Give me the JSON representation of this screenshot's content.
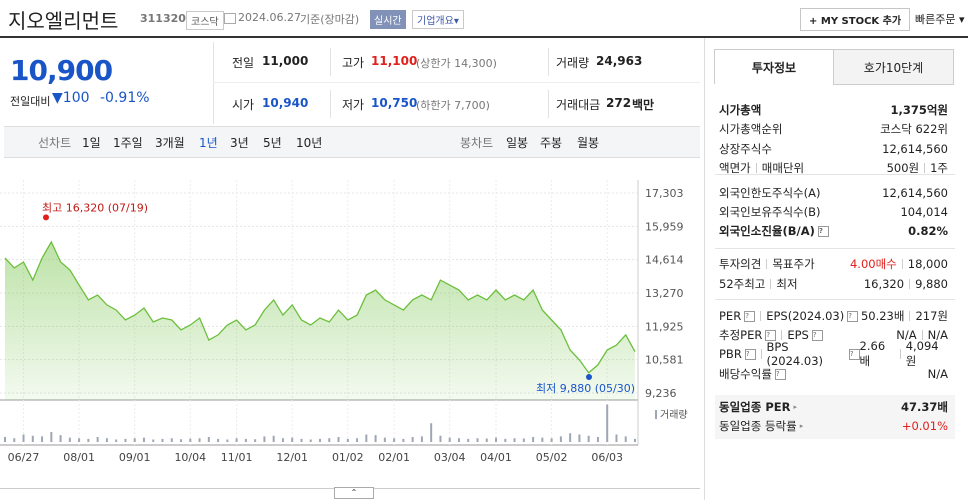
{
  "header": {
    "name": "지오엘리먼트",
    "code": "311320",
    "market": "코스닥",
    "date": "2024.06.27",
    "basis": "기준(장마감)",
    "realtime": "실시간",
    "company_info": "기업개요",
    "mystock": "MY STOCK 추가",
    "quick_order": "빠른주문"
  },
  "price": {
    "current": "10,900",
    "change_label": "전일대비",
    "change": "100",
    "rate": "-0.91%"
  },
  "quote": [
    {
      "label": "전일",
      "value": "11,000"
    },
    {
      "label": "고가",
      "value": "11,100",
      "note": "(상한가 14,300)"
    },
    {
      "label": "거래량",
      "value": "24,963"
    },
    {
      "label": "시가",
      "value": "10,940"
    },
    {
      "label": "저가",
      "value": "10,750",
      "note": "(하한가 7,700)"
    },
    {
      "label": "거래대금",
      "value": "272",
      "unit": "백만"
    }
  ],
  "tabs_line": {
    "label": "선차트",
    "items": [
      "1일",
      "1주일",
      "3개월",
      "1년",
      "3년",
      "5년",
      "10년"
    ]
  },
  "tabs_candle": {
    "label": "봉차트",
    "items": [
      "일봉",
      "주봉",
      "월봉"
    ]
  },
  "chart_data": {
    "type": "line",
    "color": "#6cbf3d",
    "categories": [
      null,
      null,
      "06/27",
      null,
      null,
      null,
      null,
      null,
      "08/01",
      null,
      null,
      null,
      null,
      null,
      "09/01",
      null,
      null,
      null,
      null,
      null,
      "10/04",
      null,
      null,
      null,
      null,
      "11/01",
      null,
      null,
      null,
      null,
      null,
      "12/01",
      null,
      null,
      null,
      null,
      null,
      "01/02",
      null,
      null,
      null,
      null,
      "02/01",
      null,
      null,
      null,
      null,
      null,
      "03/04",
      null,
      null,
      null,
      null,
      "04/01",
      null,
      null,
      null,
      null,
      null,
      "05/02",
      null,
      null,
      null,
      null,
      null,
      "06/03",
      null,
      null,
      null
    ],
    "values": [
      14680,
      14280,
      14520,
      13790,
      14680,
      15330,
      14520,
      14200,
      13590,
      12990,
      13190,
      12790,
      12580,
      12180,
      12380,
      12660,
      12100,
      12260,
      12180,
      11780,
      11980,
      12260,
      11370,
      11580,
      11980,
      12180,
      11780,
      11980,
      12580,
      12990,
      12380,
      12790,
      12180,
      11980,
      12260,
      12100,
      12580,
      12180,
      12380,
      13190,
      13390,
      12990,
      12790,
      12580,
      12990,
      13190,
      12990,
      13790,
      13590,
      13390,
      12990,
      13190,
      12990,
      13390,
      12990,
      13190,
      12990,
      13390,
      12580,
      12180,
      11780,
      10970,
      10570,
      10050,
      10370,
      10970,
      11170,
      11580,
      10900
    ],
    "ylim": [
      9236,
      17303
    ],
    "yticks": [
      {
        "value": 17303,
        "label": "17,303"
      },
      {
        "value": 15959,
        "label": "15,959"
      },
      {
        "value": 14614,
        "label": "14,614"
      },
      {
        "value": 13270,
        "label": "13,270"
      },
      {
        "value": 11925,
        "label": "11,925"
      },
      {
        "value": 10581,
        "label": "10,581"
      },
      {
        "value": 9236,
        "label": "9,236"
      }
    ],
    "grid": true,
    "annotations": [
      {
        "text": "최고 16,320 (07/19)",
        "value": 16320
      },
      {
        "text": "최저 9,880 (05/30)",
        "value": 9880
      }
    ],
    "volume": {
      "name": "거래량",
      "axis": "y2",
      "color": "#9ea6b4",
      "values": [
        40000,
        30000,
        60000,
        50000,
        45000,
        80000,
        55000,
        35000,
        30000,
        25000,
        40000,
        30000,
        20000,
        25000,
        30000,
        35000,
        20000,
        25000,
        30000,
        22000,
        28000,
        30000,
        40000,
        25000,
        20000,
        30000,
        25000,
        22000,
        45000,
        50000,
        30000,
        35000,
        25000,
        20000,
        25000,
        30000,
        40000,
        25000,
        30000,
        60000,
        55000,
        35000,
        30000,
        25000,
        40000,
        45000,
        150000,
        50000,
        35000,
        30000,
        25000,
        30000,
        28000,
        35000,
        25000,
        30000,
        28000,
        40000,
        35000,
        30000,
        45000,
        70000,
        60000,
        50000,
        40000,
        300000,
        60000,
        45000,
        24963
      ]
    },
    "y2lim": [
      0,
      320000
    ]
  },
  "side": {
    "tabs": [
      "투자정보",
      "호가10단계"
    ],
    "rows": [
      {
        "labels": [
          "시가총액"
        ],
        "values": [
          "1,375억원"
        ]
      },
      {
        "labels": [
          "시가총액순위"
        ],
        "values": [
          "코스닥 622위"
        ]
      },
      {
        "labels": [
          "상장주식수"
        ],
        "values": [
          "12,614,560"
        ]
      },
      {
        "labels": [
          "액면가",
          "매매단위"
        ],
        "values": [
          "500원",
          "1주"
        ]
      },
      {
        "labels": [
          "외국인한도주식수(A)"
        ],
        "values": [
          "12,614,560"
        ]
      },
      {
        "labels": [
          "외국인보유주식수(B)"
        ],
        "values": [
          "104,014"
        ]
      },
      {
        "labels": [
          "외국인소진율(B/A)"
        ],
        "values": [
          "0.82%"
        ]
      },
      {
        "labels": [
          "투자의견",
          "목표주가"
        ],
        "values": [
          "4.00매수",
          "18,000"
        ]
      },
      {
        "labels": [
          "52주최고",
          "최저"
        ],
        "values": [
          "16,320",
          "9,880"
        ]
      },
      {
        "labels": [
          "PER",
          "EPS(2024.03)"
        ],
        "values": [
          "50.23배",
          "217원"
        ]
      },
      {
        "labels": [
          "추정PER",
          "EPS"
        ],
        "values": [
          "N/A",
          "N/A"
        ]
      },
      {
        "labels": [
          "PBR",
          "BPS (2024.03)"
        ],
        "values": [
          "2.66배",
          "4,094원"
        ]
      },
      {
        "labels": [
          "배당수익률"
        ],
        "values": [
          "N/A"
        ]
      },
      {
        "labels": [
          "동일업종 PER"
        ],
        "values": [
          "47.37배"
        ]
      },
      {
        "labels": [
          "동일업종 등락률"
        ],
        "values": [
          "+0.01%"
        ]
      }
    ]
  }
}
